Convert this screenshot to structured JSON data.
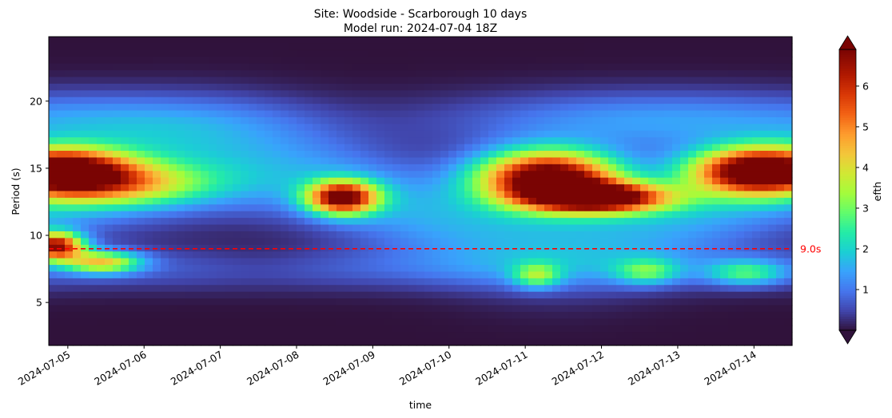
{
  "chart_data": {
    "type": "heatmap",
    "title_line1": "Site: Woodside - Scarborough 10 days",
    "title_line2": "Model run: 2024-07-04 18Z",
    "xlabel": "time",
    "ylabel": "Period (s)",
    "colorbar_label": "efth",
    "colormap": "turbo",
    "x_tick_labels": [
      "2024-07-05",
      "2024-07-06",
      "2024-07-07",
      "2024-07-08",
      "2024-07-09",
      "2024-07-10",
      "2024-07-11",
      "2024-07-12",
      "2024-07-13",
      "2024-07-14"
    ],
    "x_range_days": [
      -0.25,
      9.5
    ],
    "y_ticks": [
      5,
      10,
      15,
      20
    ],
    "ylim": [
      1.8,
      24.8
    ],
    "colorbar_ticks": [
      1,
      2,
      3,
      4,
      5,
      6
    ],
    "color_range": [
      0,
      6.9
    ],
    "reference_line": {
      "period": 9.0,
      "label": "9.0s",
      "color": "#ff0000",
      "style": "dashed"
    },
    "energy_features": [
      {
        "center_day": -0.15,
        "center_period": 15.0,
        "peak": 6.2,
        "spread_days": 0.9,
        "spread_period": 1.6
      },
      {
        "center_day": 0.5,
        "center_period": 13.8,
        "peak": 3.4,
        "spread_days": 1.3,
        "spread_period": 1.6
      },
      {
        "center_day": -0.15,
        "center_period": 9.2,
        "peak": 6.0,
        "spread_days": 0.35,
        "spread_period": 1.0
      },
      {
        "center_day": 0.45,
        "center_period": 8.0,
        "peak": 3.6,
        "spread_days": 0.5,
        "spread_period": 0.8
      },
      {
        "center_day": 3.6,
        "center_period": 12.8,
        "peak": 6.2,
        "spread_days": 0.45,
        "spread_period": 1.2
      },
      {
        "center_day": 6.3,
        "center_period": 14.3,
        "peak": 7.5,
        "spread_days": 0.9,
        "spread_period": 2.0
      },
      {
        "center_day": 7.0,
        "center_period": 12.8,
        "peak": 6.5,
        "spread_days": 0.9,
        "spread_period": 1.1
      },
      {
        "center_day": 9.1,
        "center_period": 14.8,
        "peak": 7.5,
        "spread_days": 0.9,
        "spread_period": 1.7
      },
      {
        "center_day": 6.15,
        "center_period": 7.0,
        "peak": 2.2,
        "spread_days": 0.3,
        "spread_period": 0.9
      },
      {
        "center_day": 7.6,
        "center_period": 7.3,
        "peak": 1.9,
        "spread_days": 0.4,
        "spread_period": 0.9
      },
      {
        "center_day": 8.9,
        "center_period": 7.2,
        "peak": 2.0,
        "spread_days": 0.5,
        "spread_period": 0.9
      }
    ]
  }
}
